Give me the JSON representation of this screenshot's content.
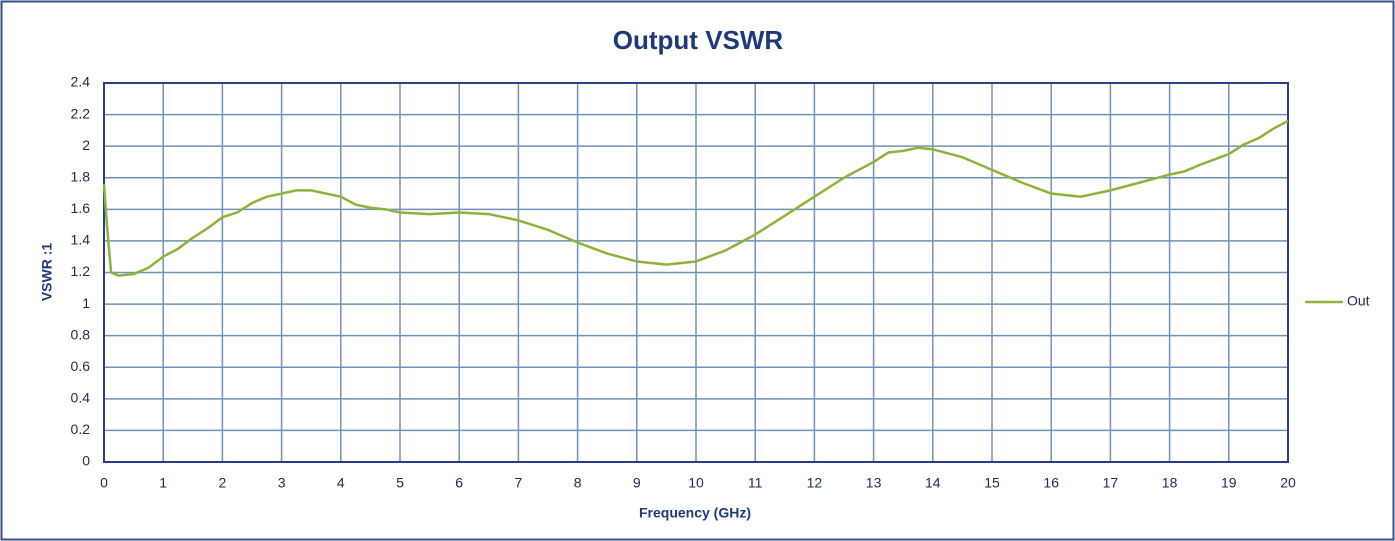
{
  "chart_data": {
    "type": "line",
    "title": "Output VSWR",
    "xlabel": "Frequency (GHz)",
    "ylabel": "VSWR :1",
    "x": [
      0,
      0.05,
      0.12,
      0.25,
      0.5,
      0.75,
      1.0,
      1.25,
      1.5,
      1.75,
      2.0,
      2.25,
      2.5,
      2.75,
      3.0,
      3.25,
      3.5,
      3.75,
      4.0,
      4.25,
      4.5,
      4.75,
      5.0,
      5.5,
      6.0,
      6.5,
      7.0,
      7.5,
      8.0,
      8.5,
      9.0,
      9.5,
      10.0,
      10.5,
      11.0,
      11.5,
      12.0,
      12.5,
      13.0,
      13.25,
      13.5,
      13.75,
      14.0,
      14.5,
      15.0,
      15.5,
      16.0,
      16.5,
      17.0,
      17.5,
      18.0,
      18.25,
      18.5,
      19.0,
      19.25,
      19.5,
      19.75,
      20.0
    ],
    "series": [
      {
        "name": "Out",
        "color": "#8db33a",
        "values": [
          1.76,
          1.5,
          1.2,
          1.18,
          1.19,
          1.23,
          1.3,
          1.35,
          1.42,
          1.48,
          1.55,
          1.58,
          1.64,
          1.68,
          1.7,
          1.72,
          1.72,
          1.7,
          1.68,
          1.63,
          1.61,
          1.6,
          1.58,
          1.57,
          1.58,
          1.57,
          1.53,
          1.47,
          1.39,
          1.32,
          1.27,
          1.25,
          1.27,
          1.34,
          1.44,
          1.56,
          1.68,
          1.8,
          1.9,
          1.96,
          1.97,
          1.99,
          1.98,
          1.93,
          1.85,
          1.77,
          1.7,
          1.68,
          1.72,
          1.77,
          1.82,
          1.84,
          1.88,
          1.95,
          2.01,
          2.05,
          2.11,
          2.16
        ]
      }
    ],
    "xlim": [
      0,
      20
    ],
    "xticks": [
      0,
      1,
      2,
      3,
      4,
      5,
      6,
      7,
      8,
      9,
      10,
      11,
      12,
      13,
      14,
      15,
      16,
      17,
      18,
      19,
      20
    ],
    "ylim": [
      0,
      2.4
    ],
    "yticks": [
      0,
      0.2,
      0.4,
      0.6,
      0.8,
      1,
      1.2,
      1.4,
      1.6,
      1.8,
      2,
      2.2,
      2.4
    ],
    "grid": true,
    "legend": "right"
  }
}
